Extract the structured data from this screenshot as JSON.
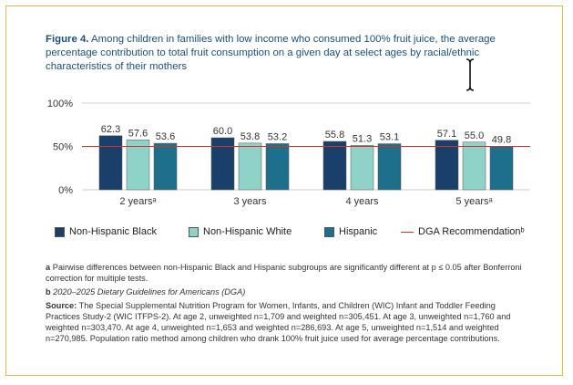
{
  "figure": {
    "label": "Figure 4.",
    "caption": "Among children in families with low income who consumed 100% fruit juice, the average percentage contribution to total fruit consumption on a given day at select ages by racial/ethnic characteristics of their mothers"
  },
  "chart_data": {
    "type": "bar",
    "categories": [
      "2 yearsᵃ",
      "3 years",
      "4 years",
      "5 yearsᵃ"
    ],
    "series": [
      {
        "name": "Non-Hispanic Black",
        "values": [
          62.3,
          60.0,
          55.8,
          57.1
        ],
        "color": "#1a3f6b"
      },
      {
        "name": "Non-Hispanic White",
        "values": [
          57.6,
          53.8,
          51.3,
          55.0
        ],
        "color": "#8fd3c8"
      },
      {
        "name": "Hispanic",
        "values": [
          53.6,
          53.2,
          53.1,
          49.8
        ],
        "color": "#1d6f8c"
      }
    ],
    "value_labels": [
      [
        "62.3",
        "57.6",
        "53.6"
      ],
      [
        "60.0",
        "53.8",
        "53.2"
      ],
      [
        "55.8",
        "51.3",
        "53.1"
      ],
      [
        "57.1",
        "55.0",
        "49.8"
      ]
    ],
    "y_ticks": [
      "100%",
      "50%",
      "0%"
    ],
    "ylim": [
      0,
      100
    ],
    "reference_line": {
      "name": "DGA Recommendationᵇ",
      "value": 50,
      "color": "#c0392b"
    },
    "grid": true,
    "legend_position": "bottom"
  },
  "notes": {
    "a_mark": "a",
    "a_text": "Pairwise differences between non-Hispanic Black and Hispanic subgroups are significantly different at p ≤ 0.05 after Bonferroni correction for multiple tests.",
    "b_mark": "b",
    "b_text": "2020–2025 Dietary Guidelines for Americans (DGA)",
    "source_label": "Source:",
    "source_text": "The Special Supplemental Nutrition Program for Women, Infants, and Children (WIC) Infant and Toddler Feeding Practices Study-2 (WIC ITFPS-2). At age 2, unweighted n=1,709 and weighted n=305,451. At age 3, unweighted n=1,760 and weighted n=303,470. At age 4, unweighted n=1,653 and weighted n=286,693. At age 5, unweighted n=1,514 and weighted n=270,985. Population ratio method among children who drank 100% fruit juice used for average percentage contributions."
  }
}
